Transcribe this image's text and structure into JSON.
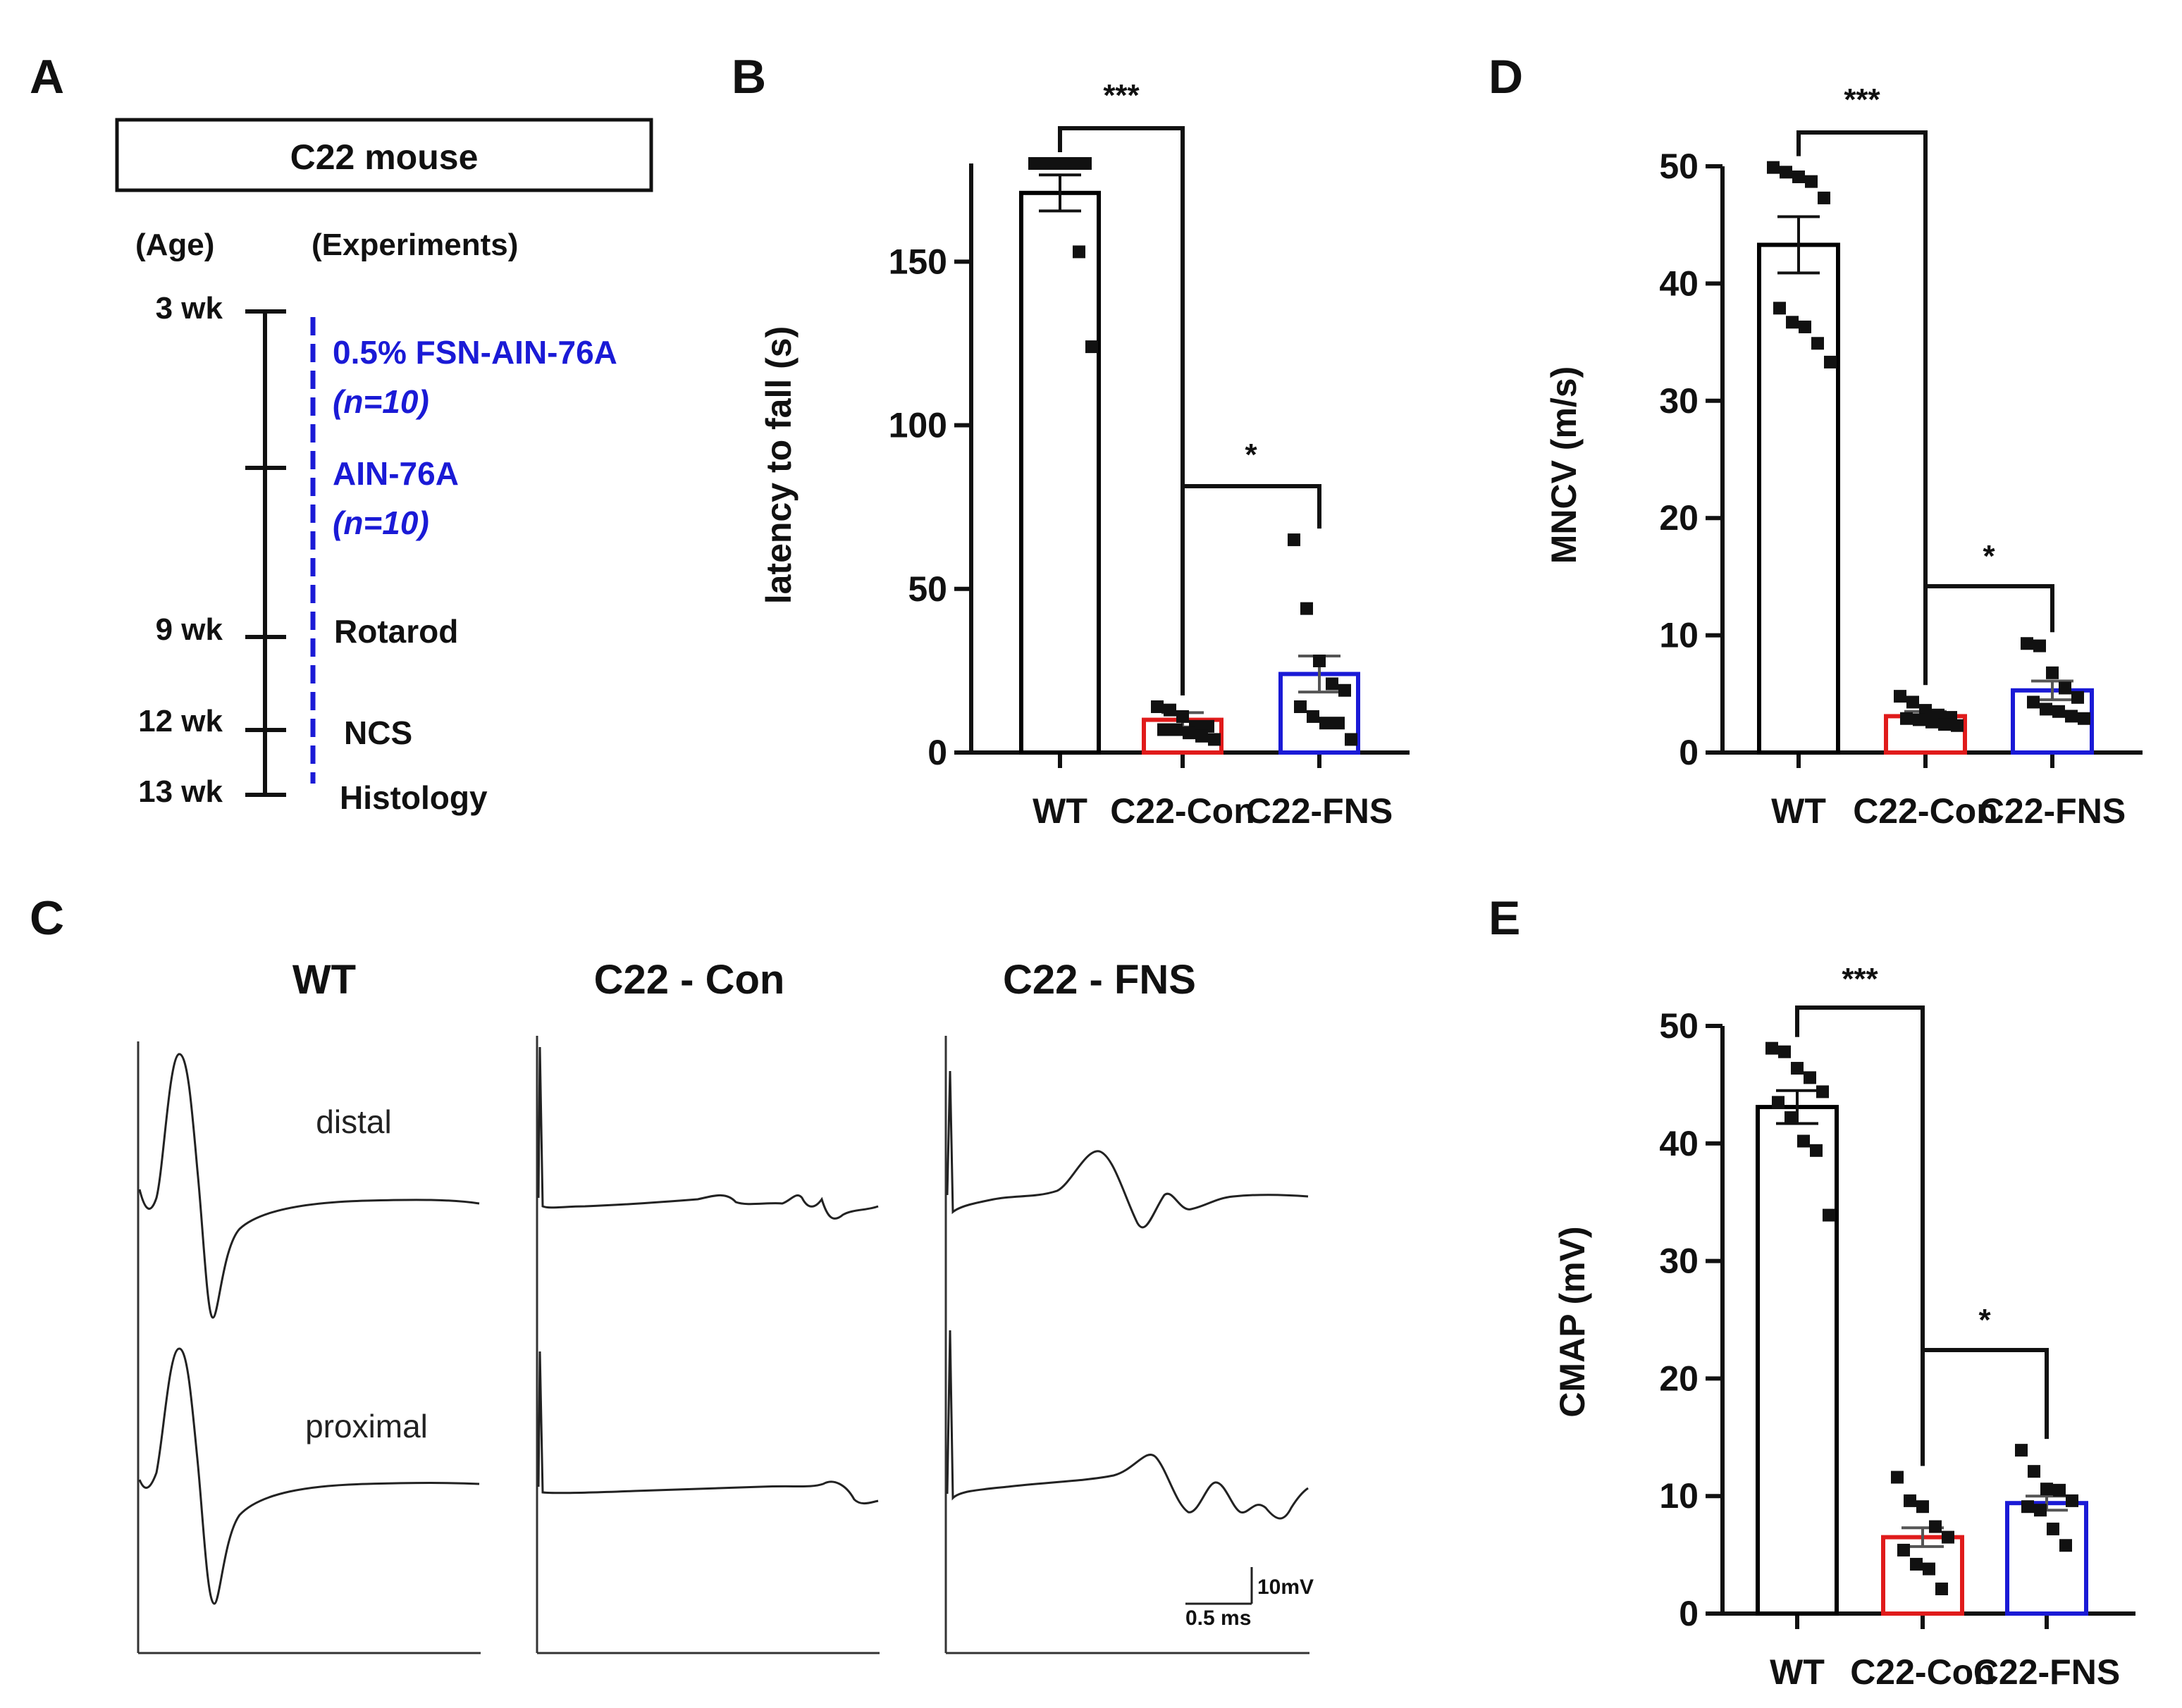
{
  "panel_labels": {
    "a": "A",
    "b": "B",
    "c": "C",
    "d": "D",
    "e": "E"
  },
  "timeline": {
    "box_label": "C22 mouse",
    "age_header": "(Age)",
    "exp_header": "(Experiments)",
    "ticks": [
      "3 wk",
      "9 wk",
      "12 wk",
      "13 wk"
    ],
    "diet1": "0.5% FSN-AIN-76A",
    "diet1_n": "(n=10)",
    "diet2": "AIN-76A",
    "diet2_n": "(n=10)",
    "events": [
      "Rotarod",
      "NCS",
      "Histology"
    ]
  },
  "traces": {
    "titles": [
      "WT",
      "C22 - Con",
      "C22 - FNS"
    ],
    "distal_label": "distal",
    "proximal_label": "proximal",
    "scale_v": "10mV",
    "scale_t": "0.5 ms"
  },
  "colors": {
    "wt": "#000000",
    "con": "#e01b1b",
    "fns": "#1a1ad6"
  },
  "chart_data": [
    {
      "id": "B",
      "type": "bar",
      "categories": [
        "WT",
        "C22-Con",
        "C22-FNS"
      ],
      "values": [
        171,
        10,
        24
      ],
      "sem": [
        5.5,
        2.2,
        5.5
      ],
      "points": [
        [
          180,
          180,
          180,
          180,
          180,
          180,
          180,
          180,
          153,
          124
        ],
        [
          14,
          13,
          11,
          8,
          8,
          7,
          7,
          6,
          5,
          4
        ],
        [
          65,
          44,
          28,
          21,
          19,
          14,
          11,
          9,
          9,
          4
        ]
      ],
      "ylabel": "latency to fall (s)",
      "ylim": [
        0,
        180
      ],
      "yticks": [
        0,
        50,
        100,
        150
      ],
      "annotations": [
        {
          "from": 0,
          "to": 1,
          "text": "***"
        },
        {
          "from": 1,
          "to": 2,
          "text": "*"
        }
      ]
    },
    {
      "id": "D",
      "type": "bar",
      "categories": [
        "WT",
        "C22-Con",
        "C22-FNS"
      ],
      "values": [
        43.3,
        3.1,
        5.3
      ],
      "sem": [
        2.4,
        0.4,
        0.8
      ],
      "points": [
        [
          49.9,
          49.5,
          49.1,
          48.7,
          47.3,
          37.9,
          36.7,
          36.3,
          34.9,
          33.3
        ],
        [
          4.8,
          4.3,
          3.6,
          3.2,
          3.0,
          2.9,
          2.8,
          2.6,
          2.4,
          2.3
        ],
        [
          9.3,
          9.1,
          6.8,
          5.5,
          4.7,
          4.3,
          3.7,
          3.5,
          3.1,
          2.9
        ]
      ],
      "ylabel": "MNCV (m/s)",
      "ylim": [
        0,
        50
      ],
      "yticks": [
        0,
        10,
        20,
        30,
        40,
        50
      ],
      "annotations": [
        {
          "from": 0,
          "to": 1,
          "text": "***"
        },
        {
          "from": 1,
          "to": 2,
          "text": "*"
        }
      ]
    },
    {
      "id": "E",
      "type": "bar",
      "categories": [
        "WT",
        "C22-Con",
        "C22-FNS"
      ],
      "values": [
        43.1,
        6.5,
        9.4
      ],
      "sem": [
        1.4,
        0.8,
        0.6
      ],
      "points": [
        [
          48.1,
          47.8,
          46.4,
          45.6,
          44.4,
          43.5,
          42.2,
          40.2,
          39.4,
          33.9
        ],
        [
          11.6,
          9.6,
          9.1,
          7.4,
          6.5,
          5.4,
          4.2,
          3.8,
          2.1
        ],
        [
          13.9,
          12.1,
          10.6,
          10.5,
          9.6,
          9.1,
          8.8,
          7.2,
          5.8
        ]
      ],
      "ylabel": "CMAP (mV)",
      "ylim": [
        0,
        50
      ],
      "yticks": [
        0,
        10,
        20,
        30,
        40,
        50
      ],
      "annotations": [
        {
          "from": 0,
          "to": 1,
          "text": "***"
        },
        {
          "from": 1,
          "to": 2,
          "text": "*"
        }
      ]
    }
  ]
}
